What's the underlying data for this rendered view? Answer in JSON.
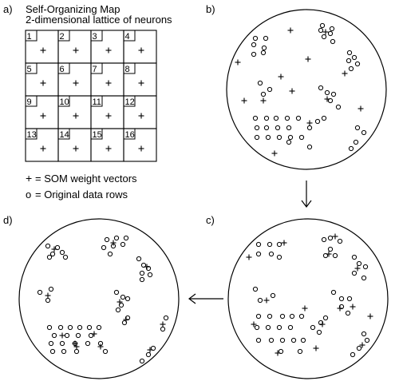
{
  "panels": {
    "a": {
      "letter": "a)",
      "title_line1": "Self-Organizing Map",
      "title_line2": "2-dimensional lattice of neurons",
      "neuron_numbers": [
        "1",
        "2",
        "3",
        "4",
        "5",
        "6",
        "7",
        "8",
        "9",
        "10",
        "11",
        "12",
        "13",
        "14",
        "15",
        "16"
      ],
      "legend": {
        "weight_symbol": "+",
        "weight_text": "= SOM weight vectors",
        "data_symbol": "o",
        "data_text": "= Original data rows"
      }
    },
    "b": {
      "letter": "b)"
    },
    "c": {
      "letter": "c)"
    },
    "d": {
      "letter": "d)"
    }
  },
  "colors": {
    "ink": "#000000",
    "background": "#ffffff"
  }
}
